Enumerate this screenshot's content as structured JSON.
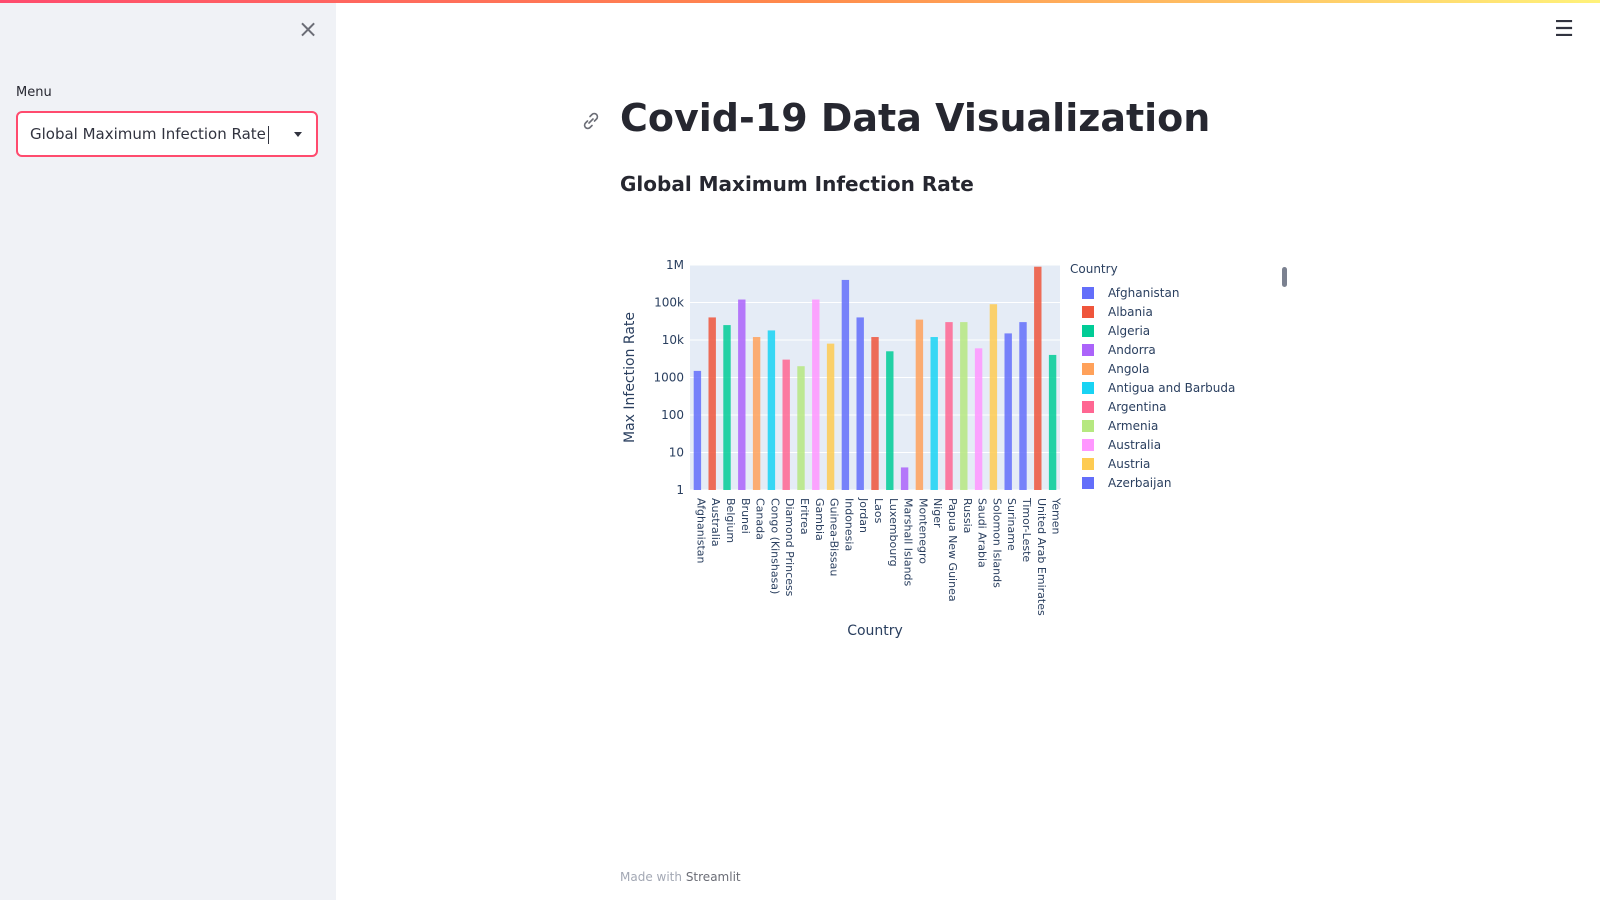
{
  "sidebar": {
    "close_icon": "close-icon",
    "menu_label": "Menu",
    "select_value": "Global Maximum Infection Rate"
  },
  "header": {
    "menu_icon": "hamburger-icon"
  },
  "main": {
    "title": "Covid-19 Data Visualization",
    "subtitle": "Global Maximum Infection Rate",
    "anchor_icon": "link-icon"
  },
  "footer": {
    "prefix": "Made with",
    "link": "Streamlit"
  },
  "colors": {
    "accent": "#ff4b6e",
    "sidebar_bg": "#f0f2f6",
    "plot_bg": "#e5ecf6"
  },
  "chart_data": {
    "type": "bar",
    "title": "",
    "xlabel": "Country",
    "ylabel": "Max Infection Rate",
    "y_scale": "log",
    "ylim": [
      1,
      1000000
    ],
    "y_ticks": [
      "1",
      "10",
      "100",
      "1000",
      "10k",
      "100k",
      "1M"
    ],
    "x_tick_labels": [
      "Afghanistan",
      "Australia",
      "Belgium",
      "Brunei",
      "Canada",
      "Congo (Kinshasa)",
      "Diamond Princess",
      "Eritrea",
      "Gambia",
      "Guinea-Bissau",
      "Indonesia",
      "Jordan",
      "Laos",
      "Luxembourg",
      "Marshall Islands",
      "Montenegro",
      "Niger",
      "Papua New Guinea",
      "Russia",
      "Saudi Arabia",
      "Solomon Islands",
      "Suriname",
      "Timor-Leste",
      "United Arab Emirates",
      "Yemen"
    ],
    "legend": {
      "title": "Country",
      "placement": "right",
      "entries": [
        {
          "name": "Afghanistan",
          "color": "#636efa"
        },
        {
          "name": "Albania",
          "color": "#ef553b"
        },
        {
          "name": "Algeria",
          "color": "#00cc96"
        },
        {
          "name": "Andorra",
          "color": "#ab63fa"
        },
        {
          "name": "Angola",
          "color": "#ffa15a"
        },
        {
          "name": "Antigua and Barbuda",
          "color": "#19d3f3"
        },
        {
          "name": "Argentina",
          "color": "#ff6692"
        },
        {
          "name": "Armenia",
          "color": "#b6e880"
        },
        {
          "name": "Australia",
          "color": "#ff97ff"
        },
        {
          "name": "Austria",
          "color": "#fecb52"
        },
        {
          "name": "Azerbaijan",
          "color": "#636efa"
        }
      ]
    },
    "bars_approx": [
      {
        "country": "Afghanistan",
        "value": 1500
      },
      {
        "country": "Australia",
        "value": 40000
      },
      {
        "country": "Belgium",
        "value": 25000
      },
      {
        "country": "Brunei",
        "value": 120000
      },
      {
        "country": "Canada",
        "value": 12000
      },
      {
        "country": "Congo (Kinshasa)",
        "value": 18000
      },
      {
        "country": "Diamond Princess",
        "value": 3000
      },
      {
        "country": "Eritrea",
        "value": 2000
      },
      {
        "country": "Gambia",
        "value": 120000
      },
      {
        "country": "Guinea-Bissau",
        "value": 8000
      },
      {
        "country": "Indonesia",
        "value": 400000
      },
      {
        "country": "Jordan",
        "value": 40000
      },
      {
        "country": "Laos",
        "value": 12000
      },
      {
        "country": "Luxembourg",
        "value": 5000
      },
      {
        "country": "Marshall Islands",
        "value": 4
      },
      {
        "country": "Montenegro",
        "value": 35000
      },
      {
        "country": "Niger",
        "value": 12000
      },
      {
        "country": "Papua New Guinea",
        "value": 30000
      },
      {
        "country": "Russia",
        "value": 30000
      },
      {
        "country": "Saudi Arabia",
        "value": 6000
      },
      {
        "country": "Solomon Islands",
        "value": 90000
      },
      {
        "country": "Suriname",
        "value": 15000
      },
      {
        "country": "Timor-Leste",
        "value": 30000
      },
      {
        "country": "United Arab Emirates",
        "value": 900000
      },
      {
        "country": "Yemen",
        "value": 4000
      }
    ]
  }
}
